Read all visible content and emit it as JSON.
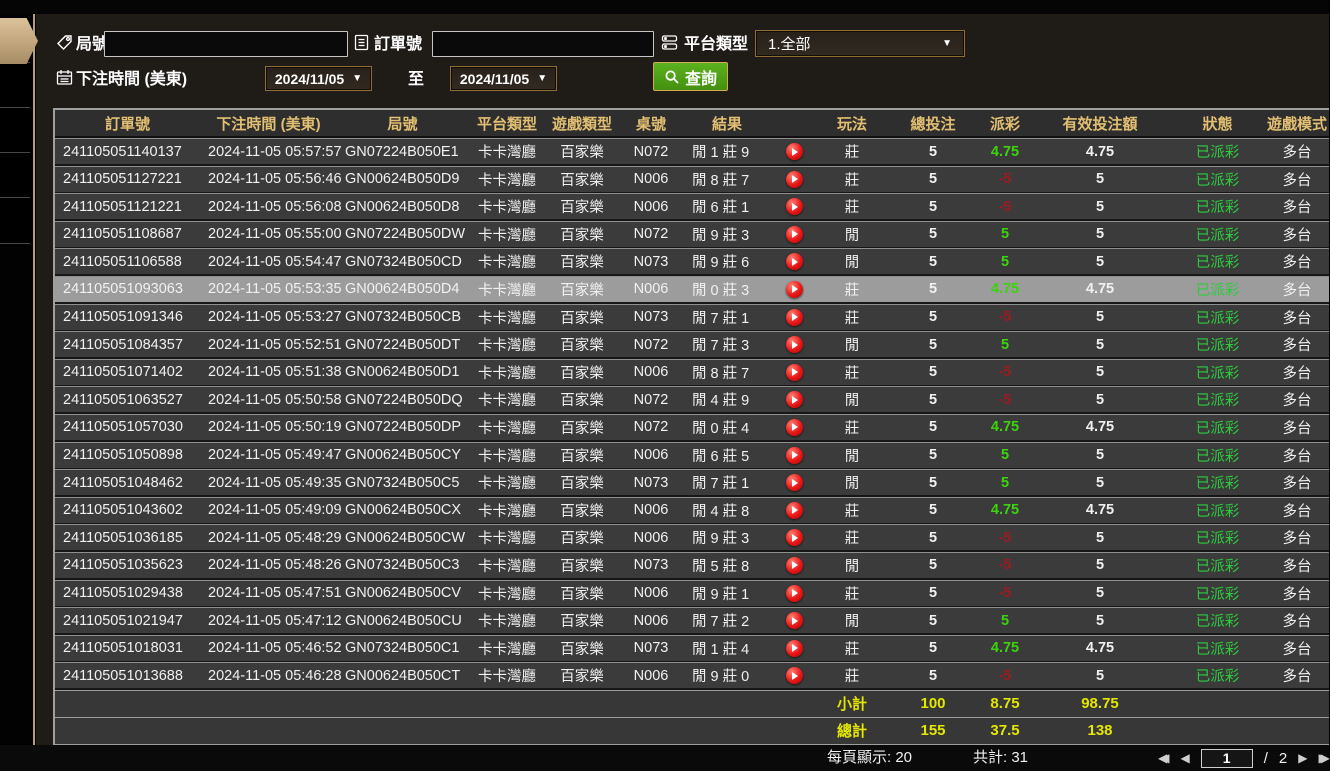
{
  "filters": {
    "round_label": "局號",
    "order_label": "訂單號",
    "platform_label": "平台類型",
    "platform_value": "1.全部",
    "bet_time_label": "下注時間 (美東)",
    "to_label": "至",
    "date_from": "2024/11/05",
    "date_to": "2024/11/05",
    "query_label": "查詢"
  },
  "table": {
    "headers": [
      "訂單號",
      "下注時間 (美東)",
      "局號",
      "平台類型",
      "遊戲類型",
      "桌號",
      "結果",
      "",
      "玩法",
      "總投注",
      "派彩",
      "有效投注額",
      "狀態",
      "遊戲模式"
    ],
    "rows": [
      {
        "order": "241105051140137",
        "time": "2024-11-05 05:57:57",
        "round": "GN07224B050E1",
        "platform": "卡卡灣廳",
        "game": "百家樂",
        "table_no": "N072",
        "result": "閒 1 莊 9",
        "play_type": "莊",
        "bet": "5",
        "payout": "4.75",
        "valid": "4.75",
        "status": "已派彩",
        "mode": "多台",
        "selected": false
      },
      {
        "order": "241105051127221",
        "time": "2024-11-05 05:56:46",
        "round": "GN00624B050D9",
        "platform": "卡卡灣廳",
        "game": "百家樂",
        "table_no": "N006",
        "result": "閒 8 莊 7",
        "play_type": "莊",
        "bet": "5",
        "payout": "-5",
        "valid": "5",
        "status": "已派彩",
        "mode": "多台",
        "selected": false
      },
      {
        "order": "241105051121221",
        "time": "2024-11-05 05:56:08",
        "round": "GN00624B050D8",
        "platform": "卡卡灣廳",
        "game": "百家樂",
        "table_no": "N006",
        "result": "閒 6 莊 1",
        "play_type": "莊",
        "bet": "5",
        "payout": "-5",
        "valid": "5",
        "status": "已派彩",
        "mode": "多台",
        "selected": false
      },
      {
        "order": "241105051108687",
        "time": "2024-11-05 05:55:00",
        "round": "GN07224B050DW",
        "platform": "卡卡灣廳",
        "game": "百家樂",
        "table_no": "N072",
        "result": "閒 9 莊 3",
        "play_type": "閒",
        "bet": "5",
        "payout": "5",
        "valid": "5",
        "status": "已派彩",
        "mode": "多台",
        "selected": false
      },
      {
        "order": "241105051106588",
        "time": "2024-11-05 05:54:47",
        "round": "GN07324B050CD",
        "platform": "卡卡灣廳",
        "game": "百家樂",
        "table_no": "N073",
        "result": "閒 9 莊 6",
        "play_type": "閒",
        "bet": "5",
        "payout": "5",
        "valid": "5",
        "status": "已派彩",
        "mode": "多台",
        "selected": false
      },
      {
        "order": "241105051093063",
        "time": "2024-11-05 05:53:35",
        "round": "GN00624B050D4",
        "platform": "卡卡灣廳",
        "game": "百家樂",
        "table_no": "N006",
        "result": "閒 0 莊 3",
        "play_type": "莊",
        "bet": "5",
        "payout": "4.75",
        "valid": "4.75",
        "status": "已派彩",
        "mode": "多台",
        "selected": true
      },
      {
        "order": "241105051091346",
        "time": "2024-11-05 05:53:27",
        "round": "GN07324B050CB",
        "platform": "卡卡灣廳",
        "game": "百家樂",
        "table_no": "N073",
        "result": "閒 7 莊 1",
        "play_type": "莊",
        "bet": "5",
        "payout": "-5",
        "valid": "5",
        "status": "已派彩",
        "mode": "多台",
        "selected": false
      },
      {
        "order": "241105051084357",
        "time": "2024-11-05 05:52:51",
        "round": "GN07224B050DT",
        "platform": "卡卡灣廳",
        "game": "百家樂",
        "table_no": "N072",
        "result": "閒 7 莊 3",
        "play_type": "閒",
        "bet": "5",
        "payout": "5",
        "valid": "5",
        "status": "已派彩",
        "mode": "多台",
        "selected": false
      },
      {
        "order": "241105051071402",
        "time": "2024-11-05 05:51:38",
        "round": "GN00624B050D1",
        "platform": "卡卡灣廳",
        "game": "百家樂",
        "table_no": "N006",
        "result": "閒 8 莊 7",
        "play_type": "莊",
        "bet": "5",
        "payout": "-5",
        "valid": "5",
        "status": "已派彩",
        "mode": "多台",
        "selected": false
      },
      {
        "order": "241105051063527",
        "time": "2024-11-05 05:50:58",
        "round": "GN07224B050DQ",
        "platform": "卡卡灣廳",
        "game": "百家樂",
        "table_no": "N072",
        "result": "閒 4 莊 9",
        "play_type": "閒",
        "bet": "5",
        "payout": "-5",
        "valid": "5",
        "status": "已派彩",
        "mode": "多台",
        "selected": false
      },
      {
        "order": "241105051057030",
        "time": "2024-11-05 05:50:19",
        "round": "GN07224B050DP",
        "platform": "卡卡灣廳",
        "game": "百家樂",
        "table_no": "N072",
        "result": "閒 0 莊 4",
        "play_type": "莊",
        "bet": "5",
        "payout": "4.75",
        "valid": "4.75",
        "status": "已派彩",
        "mode": "多台",
        "selected": false
      },
      {
        "order": "241105051050898",
        "time": "2024-11-05 05:49:47",
        "round": "GN00624B050CY",
        "platform": "卡卡灣廳",
        "game": "百家樂",
        "table_no": "N006",
        "result": "閒 6 莊 5",
        "play_type": "閒",
        "bet": "5",
        "payout": "5",
        "valid": "5",
        "status": "已派彩",
        "mode": "多台",
        "selected": false
      },
      {
        "order": "241105051048462",
        "time": "2024-11-05 05:49:35",
        "round": "GN07324B050C5",
        "platform": "卡卡灣廳",
        "game": "百家樂",
        "table_no": "N073",
        "result": "閒 7 莊 1",
        "play_type": "閒",
        "bet": "5",
        "payout": "5",
        "valid": "5",
        "status": "已派彩",
        "mode": "多台",
        "selected": false
      },
      {
        "order": "241105051043602",
        "time": "2024-11-05 05:49:09",
        "round": "GN00624B050CX",
        "platform": "卡卡灣廳",
        "game": "百家樂",
        "table_no": "N006",
        "result": "閒 4 莊 8",
        "play_type": "莊",
        "bet": "5",
        "payout": "4.75",
        "valid": "4.75",
        "status": "已派彩",
        "mode": "多台",
        "selected": false
      },
      {
        "order": "241105051036185",
        "time": "2024-11-05 05:48:29",
        "round": "GN00624B050CW",
        "platform": "卡卡灣廳",
        "game": "百家樂",
        "table_no": "N006",
        "result": "閒 9 莊 3",
        "play_type": "莊",
        "bet": "5",
        "payout": "-5",
        "valid": "5",
        "status": "已派彩",
        "mode": "多台",
        "selected": false
      },
      {
        "order": "241105051035623",
        "time": "2024-11-05 05:48:26",
        "round": "GN07324B050C3",
        "platform": "卡卡灣廳",
        "game": "百家樂",
        "table_no": "N073",
        "result": "閒 5 莊 8",
        "play_type": "閒",
        "bet": "5",
        "payout": "-5",
        "valid": "5",
        "status": "已派彩",
        "mode": "多台",
        "selected": false
      },
      {
        "order": "241105051029438",
        "time": "2024-11-05 05:47:51",
        "round": "GN00624B050CV",
        "platform": "卡卡灣廳",
        "game": "百家樂",
        "table_no": "N006",
        "result": "閒 9 莊 1",
        "play_type": "莊",
        "bet": "5",
        "payout": "-5",
        "valid": "5",
        "status": "已派彩",
        "mode": "多台",
        "selected": false
      },
      {
        "order": "241105051021947",
        "time": "2024-11-05 05:47:12",
        "round": "GN00624B050CU",
        "platform": "卡卡灣廳",
        "game": "百家樂",
        "table_no": "N006",
        "result": "閒 7 莊 2",
        "play_type": "閒",
        "bet": "5",
        "payout": "5",
        "valid": "5",
        "status": "已派彩",
        "mode": "多台",
        "selected": false
      },
      {
        "order": "241105051018031",
        "time": "2024-11-05 05:46:52",
        "round": "GN07324B050C1",
        "platform": "卡卡灣廳",
        "game": "百家樂",
        "table_no": "N073",
        "result": "閒 1 莊 4",
        "play_type": "莊",
        "bet": "5",
        "payout": "4.75",
        "valid": "4.75",
        "status": "已派彩",
        "mode": "多台",
        "selected": false
      },
      {
        "order": "241105051013688",
        "time": "2024-11-05 05:46:28",
        "round": "GN00624B050CT",
        "platform": "卡卡灣廳",
        "game": "百家樂",
        "table_no": "N006",
        "result": "閒 9 莊 0",
        "play_type": "莊",
        "bet": "5",
        "payout": "-5",
        "valid": "5",
        "status": "已派彩",
        "mode": "多台",
        "selected": false
      }
    ],
    "subtotal": {
      "label": "小計",
      "bet": "100",
      "payout": "8.75",
      "valid": "98.75"
    },
    "total": {
      "label": "總計",
      "bet": "155",
      "payout": "37.5",
      "valid": "138"
    }
  },
  "footer": {
    "page_size_label": "每頁顯示: 20",
    "total_count_label": "共計: 31",
    "current_page": "1",
    "page_divider": "/",
    "total_pages": "2"
  },
  "colors": {
    "accent_gold": "#e2bf72",
    "sidebar_tan": "#c0a57d",
    "positive_green": "#3bd40c",
    "negative_red": "#9c1b23",
    "status_green": "#2ecb3f",
    "total_yellow": "#e4e700",
    "query_green": "#4b9c17",
    "selected_row_gray": "#9c9c9c"
  }
}
